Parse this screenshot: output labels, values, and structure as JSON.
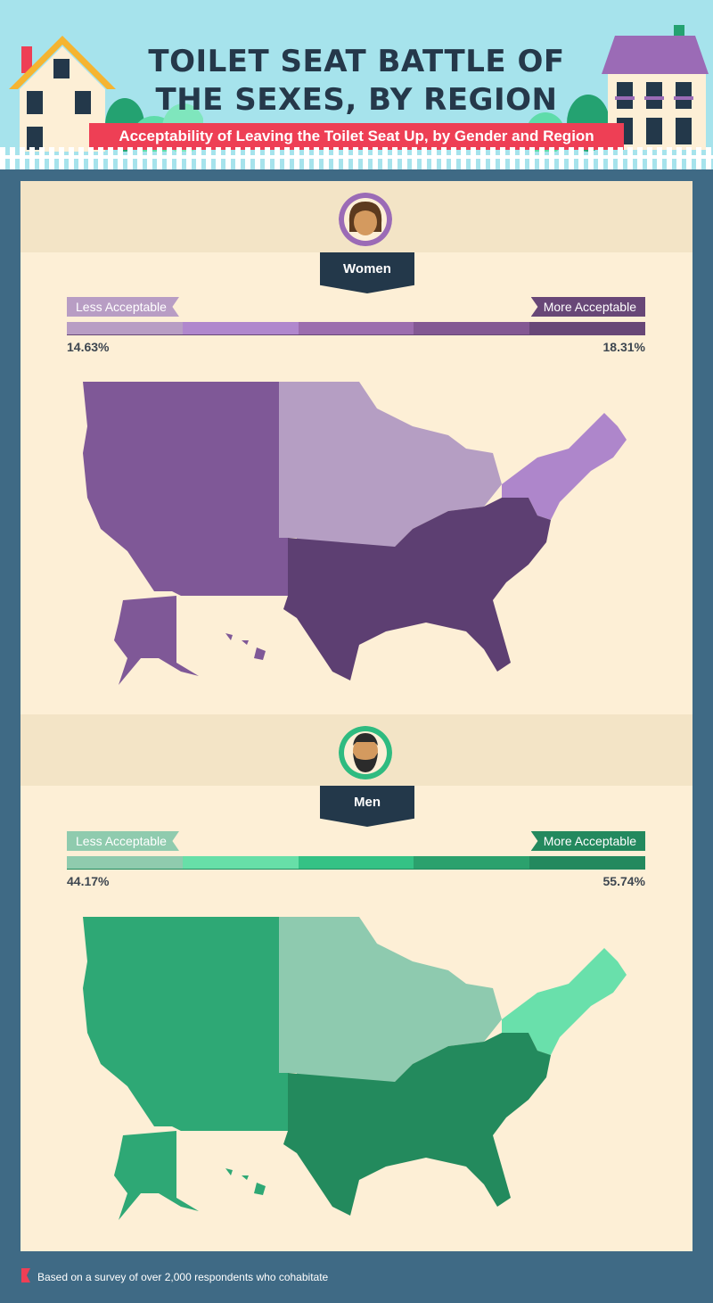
{
  "header": {
    "title_line1": "TOILET SEAT BATTLE OF",
    "title_line2": "THE SEXES, BY REGION",
    "subtitle": "Acceptability of Leaving the Toilet Seat Up, by Gender and Region"
  },
  "sections": [
    {
      "label": "Women",
      "legend_less": "Less Acceptable",
      "legend_more": "More Acceptable",
      "min": "14.63%",
      "max": "18.31%",
      "scale_colors": [
        "#b89dc4",
        "#b087cd",
        "#9c6dae",
        "#835893",
        "#684777"
      ],
      "regions": {
        "west": "#7f5897",
        "midwest": "#b59ec3",
        "northeast": "#ae86cb",
        "south": "#5d3f72"
      }
    },
    {
      "label": "Men",
      "legend_less": "Less Acceptable",
      "legend_more": "More Acceptable",
      "min": "44.17%",
      "max": "55.74%",
      "scale_colors": [
        "#8fcbae",
        "#67dfa8",
        "#34c285",
        "#2ba16d",
        "#23895e"
      ],
      "regions": {
        "west": "#2ea875",
        "midwest": "#8ecaaf",
        "northeast": "#69e0ab",
        "south": "#238a5d"
      }
    }
  ],
  "footer": "Based on a survey of over 2,000 respondents who cohabitate"
}
